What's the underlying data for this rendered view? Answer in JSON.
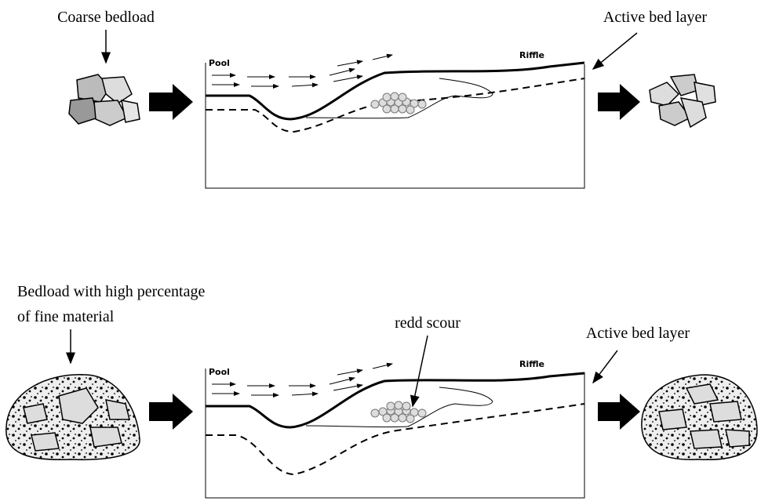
{
  "panels": [
    {
      "source_label": [
        "Coarse bedload"
      ],
      "target_label": "Active bed layer",
      "pool_label": "Pool",
      "riffle_label": "Riffle"
    },
    {
      "source_label": [
        "Bedload with high percentage",
        "of fine material"
      ],
      "annotation": "redd scour",
      "target_label": "Active bed layer",
      "pool_label": "Pool",
      "riffle_label": "Riffle"
    }
  ]
}
